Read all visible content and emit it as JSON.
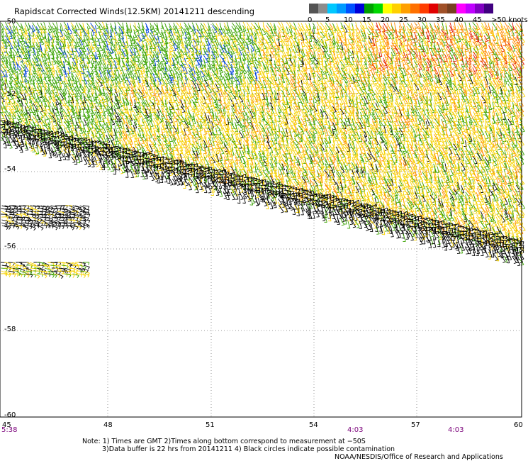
{
  "title": "Rapidscat Corrected Winds(12.5KM) 20141211 descending",
  "legend": {
    "colors": [
      "#545454",
      "#8c8c8c",
      "#00c8ff",
      "#009aff",
      "#0050ff",
      "#0000d8",
      "#00a000",
      "#00d800",
      "#ffff00",
      "#ffd000",
      "#ffa000",
      "#ff7000",
      "#ff3c00",
      "#e00000",
      "#a05028",
      "#784020",
      "#ff00ff",
      "#c000ff",
      "#8000c0",
      "#400080"
    ],
    "labels": [
      "0",
      "5",
      "10",
      "15",
      "20",
      "25",
      "30",
      "35",
      "40",
      "45",
      ">50 knots"
    ]
  },
  "axes": {
    "lat_labels": [
      "-50",
      "-52",
      "-54",
      "-56",
      "-58",
      "-60"
    ],
    "lon_labels": [
      "45",
      "48",
      "51",
      "54",
      "57",
      "60"
    ]
  },
  "times": {
    "left": "5:38",
    "middle": "4:03",
    "right": "4:03"
  },
  "notes": {
    "line1": "Note: 1) Times are GMT 2)Times along bottom correspond to measurement at −50S",
    "line2": "3)Data buffer is 22 hrs from 20141211 4) Black circles indicate possible contamination",
    "credit": "NOAA/NESDIS/Office of Research and Applications"
  },
  "wind_field": {
    "palette": {
      "green": "#3aa300",
      "yellow": "#f6d200",
      "orange": "#ff8c00",
      "red": "#e21b00",
      "blue": "#0040e0",
      "black": "#000000"
    }
  }
}
